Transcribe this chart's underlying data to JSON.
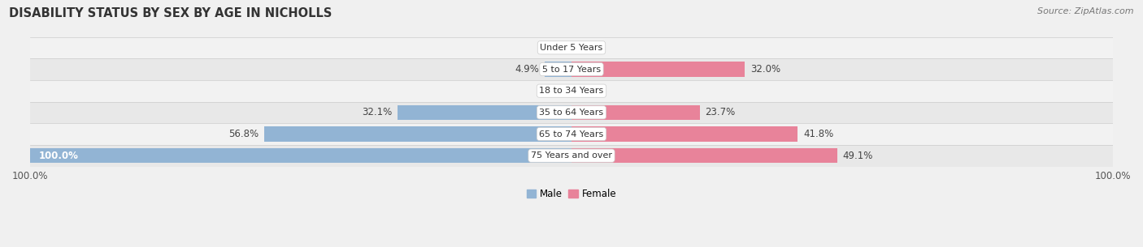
{
  "title": "DISABILITY STATUS BY SEX BY AGE IN NICHOLLS",
  "source": "Source: ZipAtlas.com",
  "categories": [
    "Under 5 Years",
    "5 to 17 Years",
    "18 to 34 Years",
    "35 to 64 Years",
    "65 to 74 Years",
    "75 Years and over"
  ],
  "male_values": [
    0.0,
    4.9,
    0.0,
    32.1,
    56.8,
    100.0
  ],
  "female_values": [
    0.0,
    32.0,
    0.0,
    23.7,
    41.8,
    49.1
  ],
  "male_color": "#92b4d4",
  "female_color": "#e8839a",
  "male_color_light": "#b8d0e8",
  "female_color_light": "#f0b0c0",
  "row_bg_odd": "#f2f2f2",
  "row_bg_even": "#e8e8e8",
  "max_value": 100.0,
  "title_fontsize": 10.5,
  "label_fontsize": 8.5,
  "tick_fontsize": 8.5,
  "source_fontsize": 8.0
}
